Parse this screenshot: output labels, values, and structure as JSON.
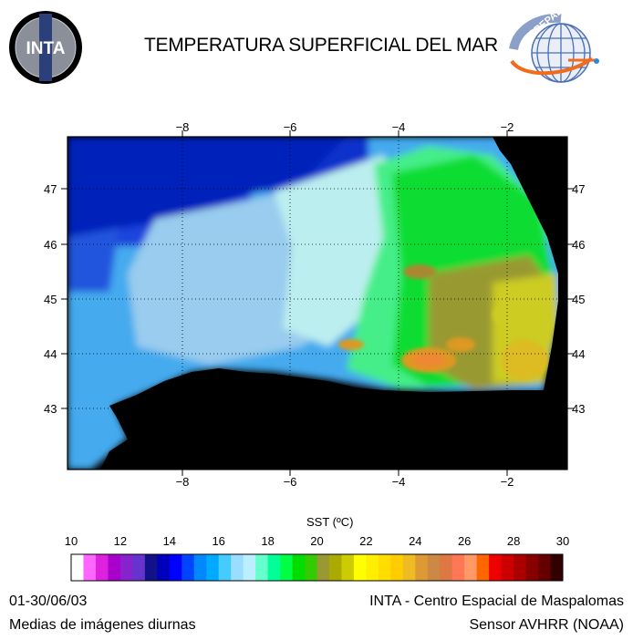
{
  "header": {
    "title": "TEMPERATURA SUPERFICIAL DEL MAR",
    "logo_left_text": "INTA",
    "logo_right_text": "CREPAD"
  },
  "map": {
    "lon_ticks": [
      "−8",
      "−6",
      "−4",
      "−2"
    ],
    "lat_ticks": [
      "47",
      "46",
      "45",
      "44",
      "43"
    ],
    "land_color": "#000000",
    "grid": "dotted"
  },
  "colorbar": {
    "label": "SST (ºC)",
    "range": [
      10,
      30
    ],
    "tick_labels": [
      "10",
      "12",
      "14",
      "16",
      "18",
      "20",
      "22",
      "24",
      "26",
      "28",
      "30"
    ],
    "colors": [
      "#ffffff",
      "#ff66ff",
      "#dd22dd",
      "#aa00cc",
      "#8822cc",
      "#6633cc",
      "#111188",
      "#0000bb",
      "#0000ff",
      "#0044ff",
      "#0088ff",
      "#00aaff",
      "#44ccff",
      "#99ddff",
      "#bbeeff",
      "#66ffcc",
      "#00ff99",
      "#00ff44",
      "#00dd00",
      "#33cc00",
      "#999933",
      "#aaaa00",
      "#cccc00",
      "#ffff00",
      "#ffee00",
      "#ffdd00",
      "#ffcc00",
      "#eebb22",
      "#dd9933",
      "#cc8844",
      "#dd7744",
      "#ff7755",
      "#ff9966",
      "#ff6600",
      "#ee0000",
      "#cc0000",
      "#aa0000",
      "#880000",
      "#660000",
      "#330000"
    ]
  },
  "footer": {
    "date": "01-30/06/03",
    "description": "Medias de imágenes diurnas",
    "institution": "INTA - Centro Espacial de Maspalomas",
    "sensor": "Sensor AVHRR (NOAA)"
  }
}
